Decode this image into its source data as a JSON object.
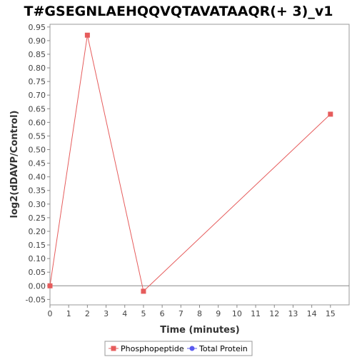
{
  "chart_data": {
    "type": "line",
    "title": "T#GSEGNLAEHQQVQTAVATAAQR(+ 3)_v1",
    "xlabel": "Time (minutes)",
    "ylabel": "log2(dDAVP/Control)",
    "xlim": [
      0,
      16
    ],
    "ylim": [
      -0.07,
      0.96
    ],
    "x_ticks": [
      0,
      1,
      2,
      3,
      4,
      5,
      6,
      7,
      8,
      9,
      10,
      11,
      12,
      13,
      14,
      15
    ],
    "y_ticks": [
      -0.05,
      0.0,
      0.05,
      0.1,
      0.15,
      0.2,
      0.25,
      0.3,
      0.35,
      0.4,
      0.45,
      0.5,
      0.55,
      0.6,
      0.65,
      0.7,
      0.75,
      0.8,
      0.85,
      0.9,
      0.95
    ],
    "zero_line": true,
    "grid": false,
    "legend_position": "bottom-center",
    "series": [
      {
        "name": "Phosphopeptide",
        "color": "#e65c5c",
        "marker": "square",
        "points": [
          {
            "x": 0,
            "y": 0.0
          },
          {
            "x": 2,
            "y": 0.92
          },
          {
            "x": 5,
            "y": -0.02
          },
          {
            "x": 15,
            "y": 0.63
          }
        ]
      },
      {
        "name": "Total Protein",
        "color": "#5b5bf0",
        "marker": "circle",
        "points": []
      }
    ]
  }
}
